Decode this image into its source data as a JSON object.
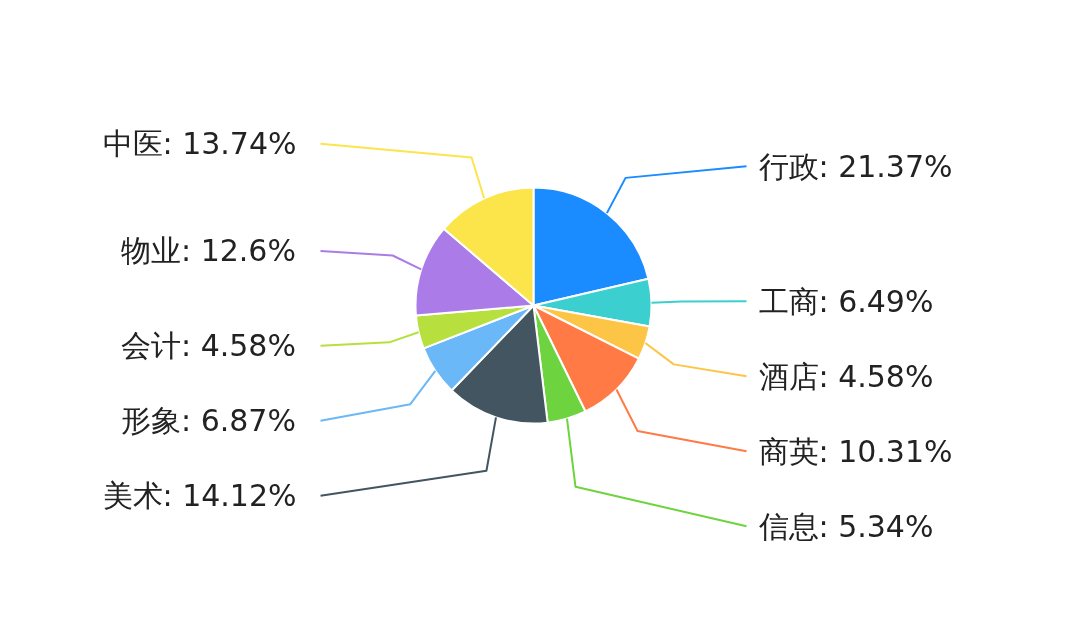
{
  "chart_data": {
    "type": "pie",
    "categories": [
      "行政",
      "工商",
      "酒店",
      "商英",
      "信息",
      "美术",
      "形象",
      "会计",
      "物业",
      "中医"
    ],
    "values": [
      21.37,
      6.49,
      4.58,
      10.31,
      5.34,
      14.12,
      6.87,
      4.58,
      12.6,
      13.74
    ],
    "colors": [
      "#1a8cff",
      "#3ccfcf",
      "#fcc545",
      "#ff7a45",
      "#6dd43f",
      "#435560",
      "#6ab8f7",
      "#b7e03f",
      "#ab7be8",
      "#fbe54a"
    ],
    "value_labels": [
      ": 21.37%",
      ": 6.49%",
      ": 4.58%",
      ": 10.31%",
      ": 5.34%",
      ": 14.12%",
      ": 6.87%",
      ": 4.58%",
      ": 12.6%",
      ": 13.74%"
    ]
  }
}
